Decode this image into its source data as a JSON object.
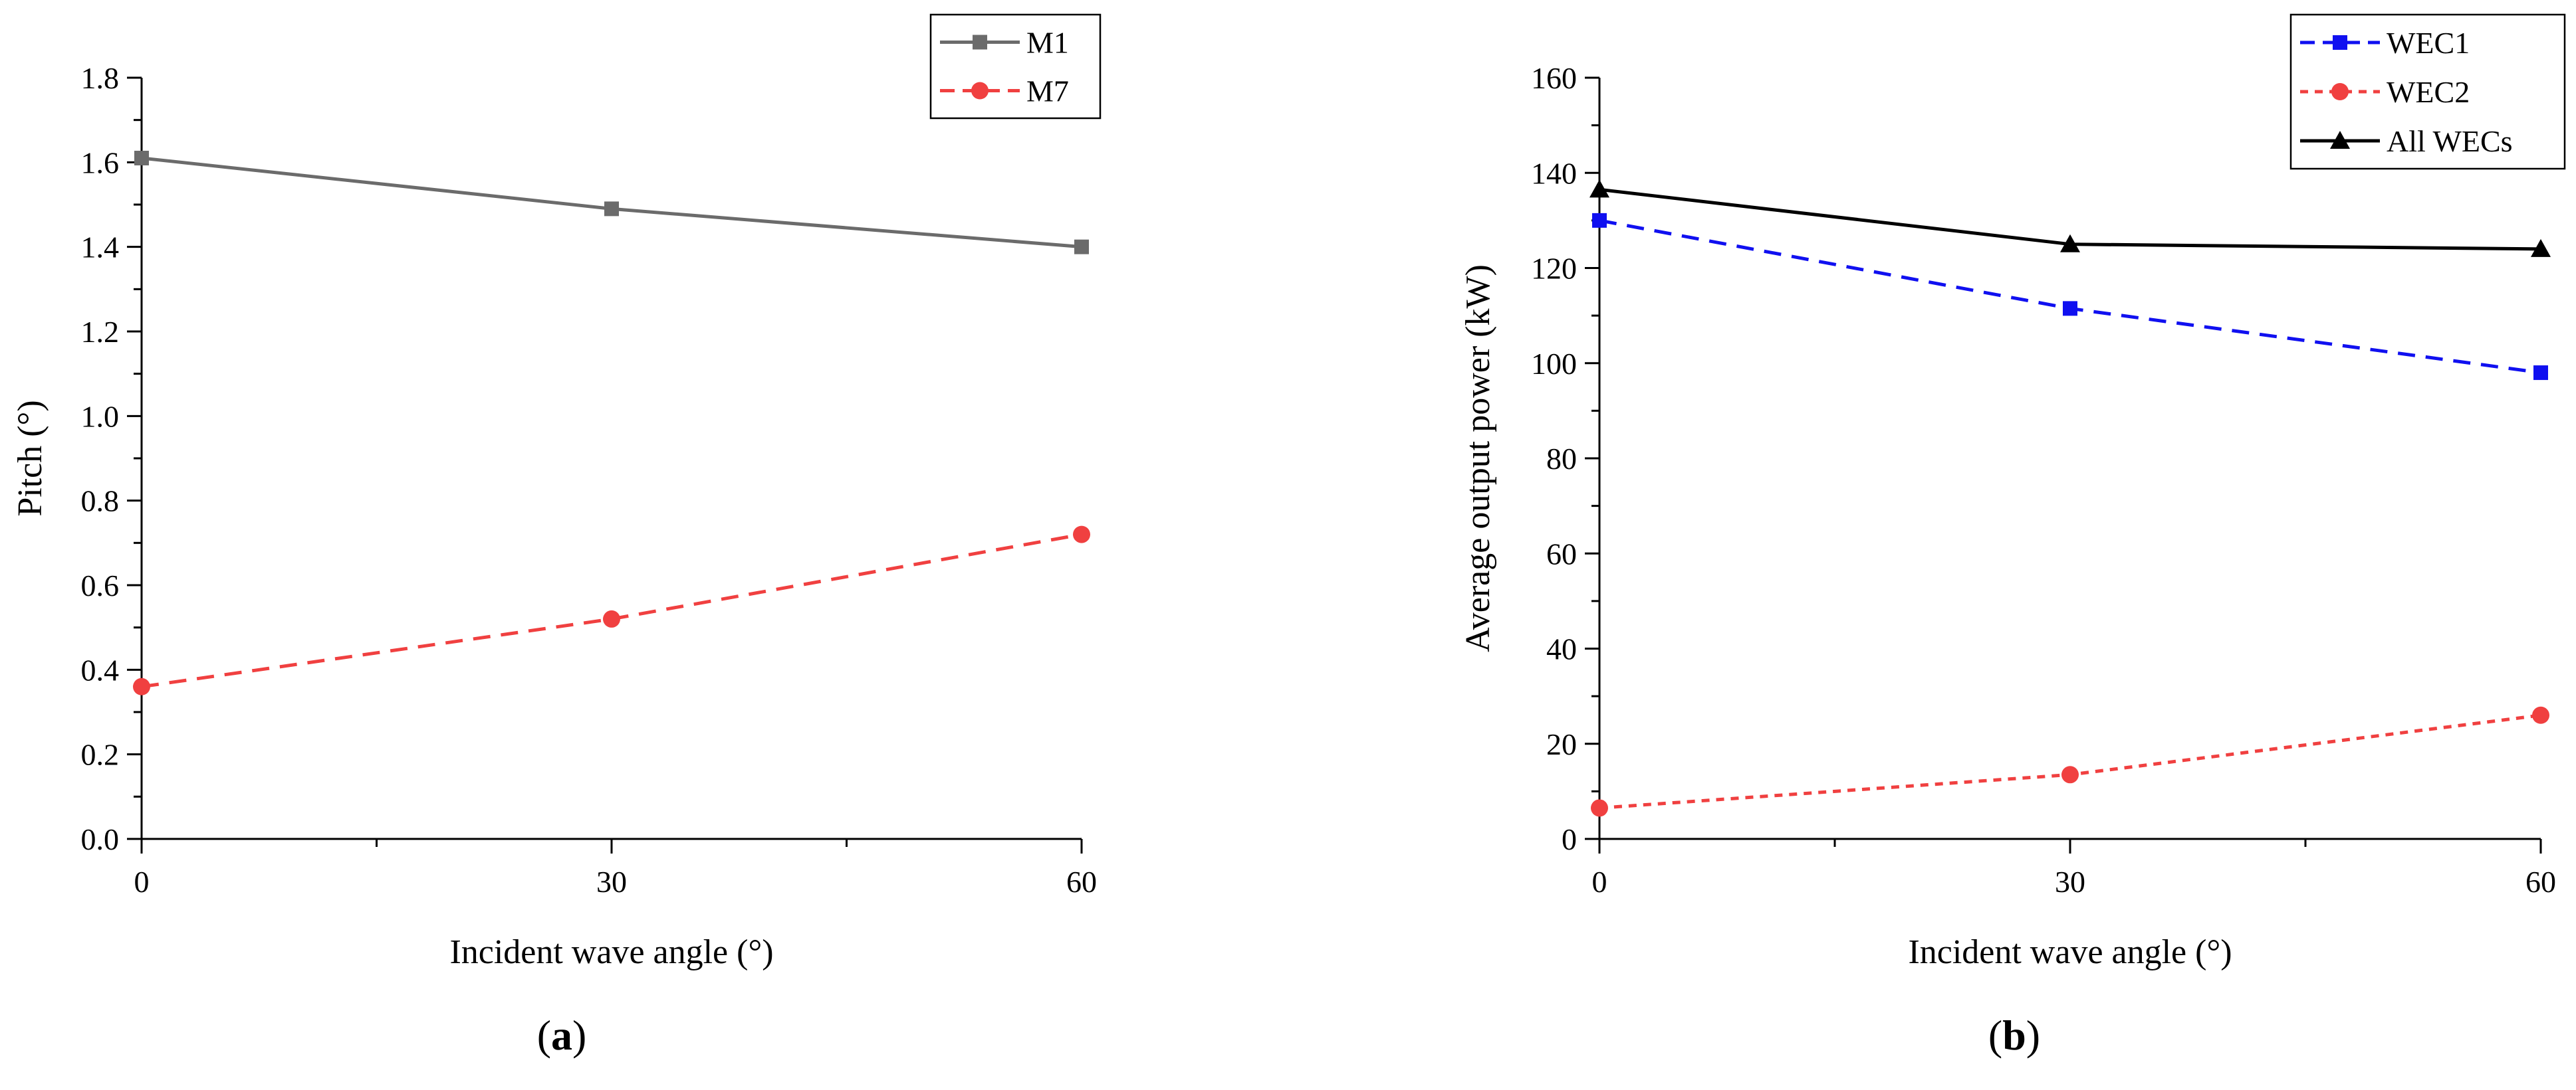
{
  "chart_data": [
    {
      "type": "line",
      "panel_label": "a",
      "title": "",
      "xlabel": "Incident wave angle (°)",
      "ylabel": "Pitch (°)",
      "x": [
        0,
        30,
        60
      ],
      "xticks": [
        "0",
        "30",
        "60"
      ],
      "xlim": [
        0,
        60
      ],
      "ylim": [
        0.0,
        1.8
      ],
      "yticks": [
        "0.0",
        "0.2",
        "0.4",
        "0.6",
        "0.8",
        "1.0",
        "1.2",
        "1.4",
        "1.6",
        "1.8"
      ],
      "grid": false,
      "legend_position": "top-right",
      "series": [
        {
          "name": "M1",
          "values": [
            1.61,
            1.49,
            1.4
          ],
          "color": "#6b6b6b",
          "dash": "solid",
          "marker": "square"
        },
        {
          "name": "M7",
          "values": [
            0.36,
            0.52,
            0.72
          ],
          "color": "#f04040",
          "dash": "dashed",
          "marker": "circle"
        }
      ]
    },
    {
      "type": "line",
      "panel_label": "b",
      "title": "",
      "xlabel": "Incident wave angle (°)",
      "ylabel": "Average output power (kW)",
      "x": [
        0,
        30,
        60
      ],
      "xticks": [
        "0",
        "30",
        "60"
      ],
      "xlim": [
        0,
        60
      ],
      "ylim": [
        0,
        160
      ],
      "yticks": [
        "0",
        "20",
        "40",
        "60",
        "80",
        "100",
        "120",
        "140",
        "160"
      ],
      "grid": false,
      "legend_position": "top-right",
      "series": [
        {
          "name": "WEC1",
          "values": [
            130,
            111.5,
            98
          ],
          "color": "#1010f0",
          "dash": "dashed",
          "marker": "square"
        },
        {
          "name": "WEC2",
          "values": [
            6.5,
            13.5,
            26
          ],
          "color": "#f04040",
          "dash": "dotted",
          "marker": "circle"
        },
        {
          "name": "All WECs",
          "values": [
            136.5,
            125,
            124
          ],
          "color": "#000000",
          "dash": "solid",
          "marker": "triangle"
        }
      ]
    }
  ]
}
